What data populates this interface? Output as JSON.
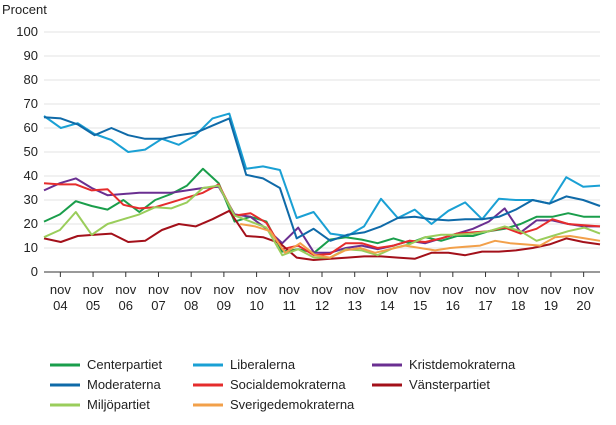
{
  "chart_data": {
    "type": "line",
    "ylabel": "Procent",
    "ylim": [
      0,
      100
    ],
    "yticks": [
      0,
      10,
      20,
      30,
      40,
      50,
      60,
      70,
      80,
      90,
      100
    ],
    "grid": "horizontal",
    "x_start": 2004.0,
    "x_end": 2021.0,
    "x_step_years": 0.5,
    "x_tick_labels": [
      {
        "x": 2004.5,
        "month": "nov",
        "year": "04"
      },
      {
        "x": 2005.5,
        "month": "nov",
        "year": "05"
      },
      {
        "x": 2006.5,
        "month": "nov",
        "year": "06"
      },
      {
        "x": 2007.5,
        "month": "nov",
        "year": "07"
      },
      {
        "x": 2008.5,
        "month": "nov",
        "year": "08"
      },
      {
        "x": 2009.5,
        "month": "nov",
        "year": "09"
      },
      {
        "x": 2010.5,
        "month": "nov",
        "year": "10"
      },
      {
        "x": 2011.5,
        "month": "nov",
        "year": "11"
      },
      {
        "x": 2012.5,
        "month": "nov",
        "year": "12"
      },
      {
        "x": 2013.5,
        "month": "nov",
        "year": "13"
      },
      {
        "x": 2014.5,
        "month": "nov",
        "year": "14"
      },
      {
        "x": 2015.5,
        "month": "nov",
        "year": "15"
      },
      {
        "x": 2016.5,
        "month": "nov",
        "year": "16"
      },
      {
        "x": 2017.5,
        "month": "nov",
        "year": "17"
      },
      {
        "x": 2018.5,
        "month": "nov",
        "year": "18"
      },
      {
        "x": 2019.5,
        "month": "nov",
        "year": "19"
      },
      {
        "x": 2020.5,
        "month": "nov",
        "year": "20"
      }
    ],
    "legend_position": "bottom",
    "series": [
      {
        "name": "Centerpartiet",
        "color": "#1a9e4b",
        "x_offset": 0,
        "values": [
          21,
          24,
          29.5,
          27.5,
          26,
          30,
          25,
          30,
          32.5,
          36,
          43,
          37,
          21,
          23,
          21,
          8.5,
          9.5,
          8,
          13.5,
          14.5,
          13.5,
          12,
          14,
          12,
          14.5,
          13,
          15,
          15,
          17,
          18,
          20,
          23,
          23,
          24.5,
          23,
          23
        ]
      },
      {
        "name": "Liberalerna",
        "color": "#1aa0d4",
        "x_offset": 0,
        "values": [
          65,
          60,
          62,
          57.5,
          55,
          50,
          51,
          55.5,
          53,
          57,
          64,
          66,
          43,
          44,
          42.5,
          22.5,
          25,
          16,
          15,
          19,
          30.5,
          22.5,
          26,
          20,
          25.5,
          29,
          22,
          30.5,
          30,
          30,
          28.5,
          39.5,
          35.5,
          36
        ]
      },
      {
        "name": "Kristdemokraterna",
        "color": "#6a2f91",
        "x_offset": 0,
        "values": [
          34,
          37,
          39,
          35,
          32,
          32.5,
          33,
          33,
          33,
          34,
          35,
          35.5,
          24,
          23,
          18,
          12,
          18.5,
          8,
          8,
          10,
          11,
          9.5,
          11,
          13,
          12,
          14,
          16,
          18,
          21,
          26.5,
          16.5,
          21.5,
          21.5,
          20,
          19,
          19
        ]
      },
      {
        "name": "Moderaterna",
        "color": "#0f6aa8",
        "x_offset": 0,
        "values": [
          64.5,
          64,
          61.5,
          57,
          60,
          57,
          55.5,
          55.5,
          57,
          58,
          61,
          64,
          40.5,
          39,
          35,
          14,
          18,
          13,
          15.5,
          16.5,
          19,
          22.5,
          23,
          22,
          21.5,
          22,
          22,
          23,
          26,
          30,
          28.5,
          31.5,
          30,
          27.5
        ]
      },
      {
        "name": "Socialdemokraterna",
        "color": "#e52c2c",
        "x_offset": 0,
        "values": [
          37,
          36.5,
          36.5,
          34,
          34.5,
          28,
          26.5,
          27,
          29,
          31,
          33,
          36.5,
          23.5,
          24.5,
          20.5,
          9.5,
          11,
          7,
          7.5,
          12,
          12,
          10,
          11,
          13,
          12.5,
          14,
          16,
          16.5,
          17,
          18.5,
          16,
          18,
          22,
          20,
          19.5,
          19
        ]
      },
      {
        "name": "Vänsterpartiet",
        "color": "#a3101a",
        "x_offset": 0,
        "values": [
          14,
          12.5,
          15,
          15.5,
          16,
          12.5,
          13,
          17.5,
          20,
          19,
          22,
          25.5,
          15,
          14.5,
          12,
          6,
          5,
          5.5,
          6,
          6.5,
          6.5,
          6,
          5.5,
          8,
          8,
          7,
          8.5,
          8.5,
          9,
          10,
          11.5,
          14,
          12.5,
          11.5
        ]
      },
      {
        "name": "Miljöpartiet",
        "color": "#9acd5b",
        "x_offset": 0,
        "values": [
          14.5,
          17.5,
          25,
          15.5,
          20,
          22,
          24,
          27,
          26.5,
          29,
          35,
          36,
          23.5,
          21,
          18.5,
          7,
          9.5,
          6,
          6,
          9.5,
          9,
          7,
          10,
          11.5,
          14.5,
          15.5,
          15.5,
          16,
          17,
          19,
          17,
          13,
          15,
          17,
          18.5,
          16
        ]
      },
      {
        "name": "Sverigedemokraterna",
        "color": "#f2a04a",
        "x_offset": 12,
        "values": [
          20,
          19,
          17,
          8,
          12,
          7,
          6,
          9,
          10,
          8,
          9.5,
          11,
          10,
          9,
          10,
          10.5,
          11,
          13,
          12,
          11.5,
          11,
          14.5,
          15,
          14,
          13
        ]
      }
    ]
  }
}
